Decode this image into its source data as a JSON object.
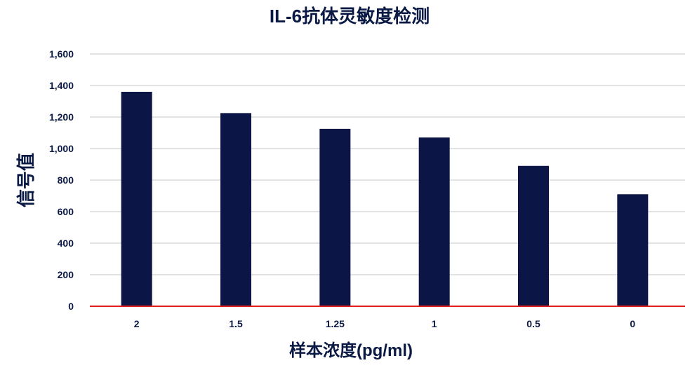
{
  "chart_data": {
    "type": "bar",
    "title": "IL-6抗体灵敏度检测",
    "xlabel": "样本浓度(pg/ml)",
    "ylabel": "信号值",
    "categories": [
      "2",
      "1.5",
      "1.25",
      "1",
      "0.5",
      "0"
    ],
    "values": [
      1360,
      1225,
      1125,
      1070,
      890,
      710
    ],
    "ylim": [
      0,
      1600
    ],
    "yticks": [
      0,
      200,
      400,
      600,
      800,
      1000,
      1200,
      1400,
      1600
    ],
    "ytick_labels": [
      "0",
      "200",
      "400",
      "600",
      "800",
      "1,000",
      "1,200",
      "1,400",
      "1,600"
    ],
    "grid": true,
    "colors": {
      "bar": "#0b1647",
      "grid": "#d9d9d9",
      "baseline": "#e02020",
      "text": "#0b1a45"
    }
  }
}
